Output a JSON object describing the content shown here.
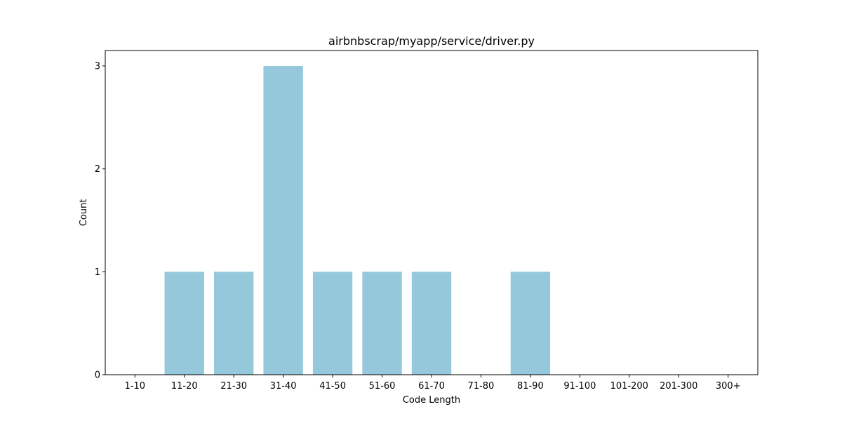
{
  "chart_data": {
    "type": "bar",
    "title": "airbnbscrap/myapp/service/driver.py",
    "xlabel": "Code Length",
    "ylabel": "Count",
    "categories": [
      "1-10",
      "11-20",
      "21-30",
      "31-40",
      "41-50",
      "51-60",
      "61-70",
      "71-80",
      "81-90",
      "91-100",
      "101-200",
      "201-300",
      "300+"
    ],
    "values": [
      0,
      1,
      1,
      3,
      1,
      1,
      1,
      0,
      1,
      0,
      0,
      0,
      0
    ],
    "ylim": [
      0,
      3.15
    ],
    "yticks": [
      0,
      1,
      2,
      3
    ],
    "grid": false,
    "legend": "none",
    "bar_color": "#96c8dc"
  }
}
